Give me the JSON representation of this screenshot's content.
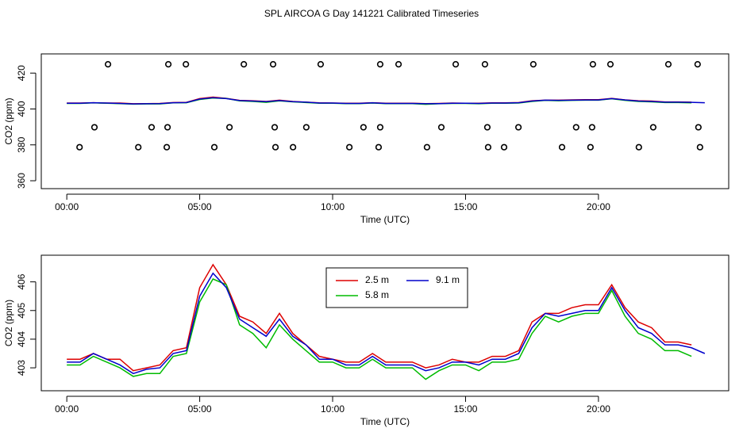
{
  "chart_data": [
    {
      "type": "line",
      "title": "SPL AIRCOA G  Day 141221  Calibrated Timeseries",
      "xlabel": "Time (UTC)",
      "ylabel": "CO2 (ppm)",
      "xlim": [
        -0.96,
        24.9
      ],
      "ylim": [
        355.6,
        430.7
      ],
      "xticks": [
        {
          "value": 0,
          "label": "00:00"
        },
        {
          "value": 5,
          "label": "05:00"
        },
        {
          "value": 10,
          "label": "10:00"
        },
        {
          "value": 15,
          "label": "15:00"
        },
        {
          "value": 20,
          "label": "20:00"
        }
      ],
      "yticks": [
        360,
        380,
        400,
        420
      ],
      "x": [
        0,
        0.5,
        1,
        1.5,
        2,
        2.5,
        3,
        3.5,
        4,
        4.5,
        5,
        5.5,
        6,
        6.5,
        7,
        7.5,
        8,
        8.5,
        9,
        9.5,
        10,
        10.5,
        11,
        11.5,
        12,
        12.5,
        13,
        13.5,
        14,
        14.5,
        15,
        15.5,
        16,
        16.5,
        17,
        17.5,
        18,
        18.5,
        19,
        19.5,
        20,
        20.5,
        21,
        21.5,
        22,
        22.5,
        23,
        23.5,
        24
      ],
      "series": [
        {
          "color": "#dd0000",
          "values": [
            403.3,
            403.3,
            403.5,
            403.3,
            403.3,
            402.9,
            403.0,
            403.1,
            403.6,
            403.7,
            405.8,
            406.6,
            405.9,
            404.8,
            404.6,
            404.2,
            404.9,
            404.2,
            403.8,
            403.4,
            403.3,
            403.2,
            403.2,
            403.5,
            403.2,
            403.2,
            403.2,
            403.0,
            403.1,
            403.3,
            403.2,
            403.2,
            403.4,
            403.4,
            403.6,
            404.6,
            404.9,
            404.9,
            405.1,
            405.2,
            405.2,
            405.9,
            405.1,
            404.6,
            404.4,
            403.9,
            403.9,
            403.8,
            null
          ]
        },
        {
          "color": "#00bb00",
          "values": [
            403.1,
            403.1,
            403.4,
            403.2,
            403.0,
            402.7,
            402.8,
            402.8,
            403.4,
            403.5,
            405.3,
            406.1,
            405.9,
            404.5,
            404.2,
            403.7,
            404.5,
            404.0,
            403.6,
            403.2,
            403.2,
            403.0,
            403.0,
            403.3,
            403.0,
            403.0,
            403.0,
            402.6,
            402.9,
            403.1,
            403.1,
            402.9,
            403.2,
            403.2,
            403.3,
            404.2,
            404.8,
            404.6,
            404.8,
            404.9,
            404.9,
            405.7,
            404.8,
            404.2,
            404.0,
            403.6,
            403.6,
            403.4,
            null
          ]
        },
        {
          "color": "#0000cc",
          "values": [
            403.2,
            403.2,
            403.5,
            403.3,
            403.1,
            402.8,
            402.95,
            403.0,
            403.5,
            403.6,
            405.5,
            406.3,
            405.8,
            404.7,
            404.4,
            404.1,
            404.7,
            404.1,
            403.8,
            403.3,
            403.3,
            403.1,
            403.1,
            403.4,
            403.1,
            403.1,
            403.1,
            402.9,
            403.0,
            403.2,
            403.2,
            403.1,
            403.3,
            403.3,
            403.5,
            404.4,
            404.9,
            404.8,
            404.9,
            405.0,
            405.0,
            405.8,
            405.0,
            404.4,
            404.2,
            403.8,
            403.8,
            403.7,
            403.5
          ]
        },
        {
          "color": "#000000",
          "style": "points",
          "x": [
            1.55,
            3.82,
            4.48,
            6.66,
            7.76,
            9.55,
            11.79,
            12.48,
            14.63,
            15.73,
            17.55,
            19.79,
            20.45,
            22.63,
            23.73
          ],
          "values": [
            424.9,
            424.9,
            424.9,
            424.9,
            424.9,
            424.9,
            424.9,
            424.9,
            424.9,
            424.9,
            424.9,
            424.9,
            424.9,
            424.9,
            424.9
          ]
        },
        {
          "color": "#000000",
          "style": "points",
          "x": [
            1.04,
            3.19,
            3.79,
            6.12,
            7.82,
            9.01,
            11.16,
            11.79,
            14.09,
            15.82,
            16.99,
            19.16,
            19.76,
            22.06,
            23.76
          ],
          "values": [
            389.8,
            389.8,
            389.8,
            389.8,
            389.8,
            389.8,
            389.8,
            389.8,
            389.8,
            389.8,
            389.8,
            389.8,
            389.8,
            389.8,
            389.8
          ]
        },
        {
          "color": "#000000",
          "style": "points",
          "x": [
            0.48,
            2.69,
            3.76,
            5.55,
            7.85,
            8.51,
            10.63,
            11.73,
            13.55,
            15.85,
            16.45,
            18.63,
            19.7,
            21.52,
            23.82
          ],
          "values": [
            378.7,
            378.7,
            378.7,
            378.7,
            378.7,
            378.7,
            378.7,
            378.7,
            378.7,
            378.7,
            378.7,
            378.7,
            378.7,
            378.7,
            378.7
          ]
        }
      ]
    },
    {
      "type": "line",
      "xlabel": "Time (UTC)",
      "ylabel": "CO2 (ppm)",
      "xlim": [
        -0.96,
        24.9
      ],
      "ylim": [
        402.2,
        406.93
      ],
      "xticks": [
        {
          "value": 0,
          "label": "00:00"
        },
        {
          "value": 5,
          "label": "05:00"
        },
        {
          "value": 10,
          "label": "10:00"
        },
        {
          "value": 15,
          "label": "15:00"
        },
        {
          "value": 20,
          "label": "20:00"
        }
      ],
      "yticks": [
        403,
        404,
        405,
        406
      ],
      "legend": "top-center",
      "x": [
        0,
        0.5,
        1,
        1.5,
        2,
        2.5,
        3,
        3.5,
        4,
        4.5,
        5,
        5.5,
        6,
        6.5,
        7,
        7.5,
        8,
        8.5,
        9,
        9.5,
        10,
        10.5,
        11,
        11.5,
        12,
        12.5,
        13,
        13.5,
        14,
        14.5,
        15,
        15.5,
        16,
        16.5,
        17,
        17.5,
        18,
        18.5,
        19,
        19.5,
        20,
        20.5,
        21,
        21.5,
        22,
        22.5,
        23,
        23.5,
        24
      ],
      "series": [
        {
          "name": "2.5 m",
          "color": "#dd0000",
          "values": [
            403.3,
            403.3,
            403.5,
            403.3,
            403.3,
            402.9,
            403.0,
            403.1,
            403.6,
            403.7,
            405.8,
            406.6,
            405.9,
            404.8,
            404.6,
            404.2,
            404.9,
            404.2,
            403.8,
            403.4,
            403.3,
            403.2,
            403.2,
            403.5,
            403.2,
            403.2,
            403.2,
            403.0,
            403.1,
            403.3,
            403.2,
            403.2,
            403.4,
            403.4,
            403.6,
            404.6,
            404.9,
            404.9,
            405.1,
            405.2,
            405.2,
            405.9,
            405.1,
            404.6,
            404.4,
            403.9,
            403.9,
            403.8,
            null
          ]
        },
        {
          "name": "5.8 m",
          "color": "#00bb00",
          "values": [
            403.1,
            403.1,
            403.4,
            403.2,
            403.0,
            402.7,
            402.8,
            402.8,
            403.4,
            403.5,
            405.3,
            406.1,
            405.9,
            404.5,
            404.2,
            403.7,
            404.5,
            404.0,
            403.6,
            403.2,
            403.2,
            403.0,
            403.0,
            403.3,
            403.0,
            403.0,
            403.0,
            402.6,
            402.9,
            403.1,
            403.1,
            402.9,
            403.2,
            403.2,
            403.3,
            404.2,
            404.8,
            404.6,
            404.8,
            404.9,
            404.9,
            405.7,
            404.8,
            404.2,
            404.0,
            403.6,
            403.6,
            403.4,
            null
          ]
        },
        {
          "name": "9.1 m",
          "color": "#0000cc",
          "values": [
            403.2,
            403.2,
            403.5,
            403.3,
            403.1,
            402.8,
            402.95,
            403.0,
            403.5,
            403.6,
            405.5,
            406.3,
            405.8,
            404.7,
            404.4,
            404.1,
            404.7,
            404.1,
            403.8,
            403.3,
            403.3,
            403.1,
            403.1,
            403.4,
            403.1,
            403.1,
            403.1,
            402.9,
            403.0,
            403.2,
            403.2,
            403.1,
            403.3,
            403.3,
            403.5,
            404.4,
            404.9,
            404.8,
            404.9,
            405.0,
            405.0,
            405.8,
            405.0,
            404.4,
            404.2,
            403.8,
            403.8,
            403.7,
            403.5
          ]
        }
      ]
    }
  ]
}
